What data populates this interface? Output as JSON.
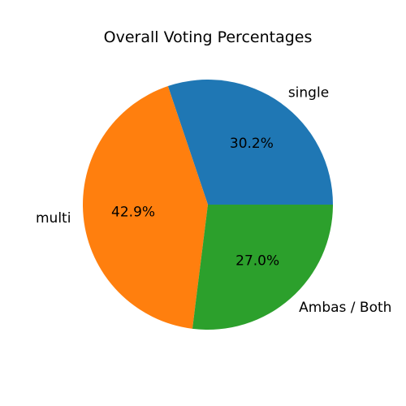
{
  "chart_data": {
    "type": "pie",
    "title": "Overall Voting Percentages",
    "start_angle_deg": 0,
    "direction": "counterclockwise",
    "slices": [
      {
        "label": "single",
        "value": 30.2,
        "pct_label": "30.2%",
        "color": "#1f77b4"
      },
      {
        "label": "multi",
        "value": 42.9,
        "pct_label": "42.9%",
        "color": "#ff7f0e"
      },
      {
        "label": "Ambas / Both",
        "value": 27.0,
        "pct_label": "27.0%",
        "color": "#2ca02c"
      }
    ]
  }
}
